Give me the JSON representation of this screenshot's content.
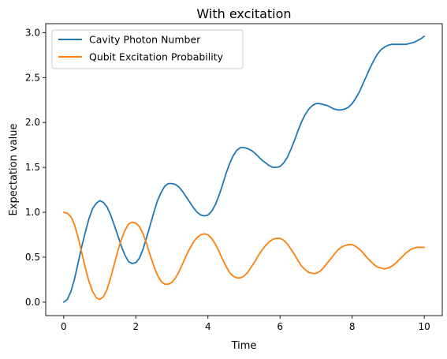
{
  "chart_data": {
    "type": "line",
    "title": "With excitation",
    "xlabel": "Time",
    "ylabel": "Expectation value",
    "xlim": [
      -0.5,
      10.5
    ],
    "ylim": [
      -0.15,
      3.1
    ],
    "xticks": [
      0,
      2,
      4,
      6,
      8,
      10
    ],
    "yticks": [
      0.0,
      0.5,
      1.0,
      1.5,
      2.0,
      2.5,
      3.0
    ],
    "grid": false,
    "legend_position": "top-left",
    "series": [
      {
        "name": "Cavity Photon Number",
        "color": "#1f77b4",
        "points": [
          [
            0.0,
            0.0
          ],
          [
            0.1,
            0.03
          ],
          [
            0.2,
            0.12
          ],
          [
            0.3,
            0.26
          ],
          [
            0.4,
            0.44
          ],
          [
            0.5,
            0.62
          ],
          [
            0.6,
            0.78
          ],
          [
            0.7,
            0.93
          ],
          [
            0.8,
            1.04
          ],
          [
            0.9,
            1.1
          ],
          [
            1.0,
            1.13
          ],
          [
            1.1,
            1.11
          ],
          [
            1.2,
            1.06
          ],
          [
            1.3,
            0.97
          ],
          [
            1.4,
            0.86
          ],
          [
            1.5,
            0.74
          ],
          [
            1.6,
            0.62
          ],
          [
            1.7,
            0.52
          ],
          [
            1.8,
            0.45
          ],
          [
            1.9,
            0.43
          ],
          [
            2.0,
            0.44
          ],
          [
            2.1,
            0.49
          ],
          [
            2.2,
            0.59
          ],
          [
            2.3,
            0.72
          ],
          [
            2.4,
            0.86
          ],
          [
            2.5,
            1.0
          ],
          [
            2.6,
            1.13
          ],
          [
            2.7,
            1.22
          ],
          [
            2.8,
            1.29
          ],
          [
            2.9,
            1.32
          ],
          [
            3.0,
            1.32
          ],
          [
            3.1,
            1.31
          ],
          [
            3.2,
            1.28
          ],
          [
            3.3,
            1.23
          ],
          [
            3.4,
            1.17
          ],
          [
            3.5,
            1.11
          ],
          [
            3.6,
            1.05
          ],
          [
            3.7,
            1.0
          ],
          [
            3.8,
            0.97
          ],
          [
            3.9,
            0.96
          ],
          [
            4.0,
            0.97
          ],
          [
            4.1,
            1.01
          ],
          [
            4.2,
            1.08
          ],
          [
            4.3,
            1.18
          ],
          [
            4.4,
            1.3
          ],
          [
            4.5,
            1.43
          ],
          [
            4.6,
            1.54
          ],
          [
            4.7,
            1.63
          ],
          [
            4.8,
            1.69
          ],
          [
            4.9,
            1.72
          ],
          [
            5.0,
            1.72
          ],
          [
            5.1,
            1.71
          ],
          [
            5.2,
            1.69
          ],
          [
            5.3,
            1.66
          ],
          [
            5.4,
            1.62
          ],
          [
            5.5,
            1.58
          ],
          [
            5.6,
            1.55
          ],
          [
            5.7,
            1.52
          ],
          [
            5.8,
            1.5
          ],
          [
            5.9,
            1.5
          ],
          [
            6.0,
            1.51
          ],
          [
            6.1,
            1.55
          ],
          [
            6.2,
            1.61
          ],
          [
            6.3,
            1.7
          ],
          [
            6.4,
            1.8
          ],
          [
            6.5,
            1.91
          ],
          [
            6.6,
            2.01
          ],
          [
            6.7,
            2.09
          ],
          [
            6.8,
            2.15
          ],
          [
            6.9,
            2.19
          ],
          [
            7.0,
            2.21
          ],
          [
            7.1,
            2.21
          ],
          [
            7.2,
            2.2
          ],
          [
            7.3,
            2.19
          ],
          [
            7.4,
            2.17
          ],
          [
            7.5,
            2.15
          ],
          [
            7.6,
            2.14
          ],
          [
            7.7,
            2.14
          ],
          [
            7.8,
            2.15
          ],
          [
            7.9,
            2.17
          ],
          [
            8.0,
            2.21
          ],
          [
            8.1,
            2.27
          ],
          [
            8.2,
            2.34
          ],
          [
            8.3,
            2.43
          ],
          [
            8.4,
            2.52
          ],
          [
            8.5,
            2.61
          ],
          [
            8.6,
            2.69
          ],
          [
            8.7,
            2.76
          ],
          [
            8.8,
            2.81
          ],
          [
            8.9,
            2.84
          ],
          [
            9.0,
            2.86
          ],
          [
            9.1,
            2.87
          ],
          [
            9.2,
            2.87
          ],
          [
            9.3,
            2.87
          ],
          [
            9.4,
            2.87
          ],
          [
            9.5,
            2.87
          ],
          [
            9.6,
            2.88
          ],
          [
            9.7,
            2.89
          ],
          [
            9.8,
            2.91
          ],
          [
            9.9,
            2.93
          ],
          [
            10.0,
            2.96
          ]
        ]
      },
      {
        "name": "Qubit Excitation Probability",
        "color": "#ff7f0e",
        "points": [
          [
            0.0,
            1.0
          ],
          [
            0.1,
            0.99
          ],
          [
            0.2,
            0.95
          ],
          [
            0.3,
            0.86
          ],
          [
            0.4,
            0.72
          ],
          [
            0.5,
            0.55
          ],
          [
            0.6,
            0.38
          ],
          [
            0.7,
            0.23
          ],
          [
            0.8,
            0.12
          ],
          [
            0.9,
            0.05
          ],
          [
            1.0,
            0.03
          ],
          [
            1.1,
            0.06
          ],
          [
            1.2,
            0.14
          ],
          [
            1.3,
            0.27
          ],
          [
            1.4,
            0.42
          ],
          [
            1.5,
            0.57
          ],
          [
            1.6,
            0.7
          ],
          [
            1.7,
            0.8
          ],
          [
            1.8,
            0.87
          ],
          [
            1.9,
            0.89
          ],
          [
            2.0,
            0.88
          ],
          [
            2.1,
            0.84
          ],
          [
            2.2,
            0.76
          ],
          [
            2.3,
            0.65
          ],
          [
            2.4,
            0.52
          ],
          [
            2.5,
            0.4
          ],
          [
            2.6,
            0.3
          ],
          [
            2.7,
            0.23
          ],
          [
            2.8,
            0.2
          ],
          [
            2.9,
            0.2
          ],
          [
            3.0,
            0.22
          ],
          [
            3.1,
            0.27
          ],
          [
            3.2,
            0.34
          ],
          [
            3.3,
            0.43
          ],
          [
            3.4,
            0.52
          ],
          [
            3.5,
            0.6
          ],
          [
            3.6,
            0.67
          ],
          [
            3.7,
            0.72
          ],
          [
            3.8,
            0.75
          ],
          [
            3.9,
            0.76
          ],
          [
            4.0,
            0.75
          ],
          [
            4.1,
            0.71
          ],
          [
            4.2,
            0.65
          ],
          [
            4.3,
            0.57
          ],
          [
            4.4,
            0.48
          ],
          [
            4.5,
            0.4
          ],
          [
            4.6,
            0.33
          ],
          [
            4.7,
            0.29
          ],
          [
            4.8,
            0.27
          ],
          [
            4.9,
            0.27
          ],
          [
            5.0,
            0.29
          ],
          [
            5.1,
            0.33
          ],
          [
            5.2,
            0.39
          ],
          [
            5.3,
            0.45
          ],
          [
            5.4,
            0.52
          ],
          [
            5.5,
            0.58
          ],
          [
            5.6,
            0.63
          ],
          [
            5.7,
            0.67
          ],
          [
            5.8,
            0.7
          ],
          [
            5.9,
            0.71
          ],
          [
            6.0,
            0.71
          ],
          [
            6.1,
            0.69
          ],
          [
            6.2,
            0.65
          ],
          [
            6.3,
            0.59
          ],
          [
            6.4,
            0.53
          ],
          [
            6.5,
            0.46
          ],
          [
            6.6,
            0.4
          ],
          [
            6.7,
            0.36
          ],
          [
            6.8,
            0.33
          ],
          [
            6.9,
            0.32
          ],
          [
            7.0,
            0.32
          ],
          [
            7.1,
            0.34
          ],
          [
            7.2,
            0.38
          ],
          [
            7.3,
            0.43
          ],
          [
            7.4,
            0.48
          ],
          [
            7.5,
            0.53
          ],
          [
            7.6,
            0.58
          ],
          [
            7.7,
            0.61
          ],
          [
            7.8,
            0.63
          ],
          [
            7.9,
            0.64
          ],
          [
            8.0,
            0.64
          ],
          [
            8.1,
            0.62
          ],
          [
            8.2,
            0.59
          ],
          [
            8.3,
            0.55
          ],
          [
            8.4,
            0.5
          ],
          [
            8.5,
            0.46
          ],
          [
            8.6,
            0.42
          ],
          [
            8.7,
            0.39
          ],
          [
            8.8,
            0.38
          ],
          [
            8.9,
            0.37
          ],
          [
            9.0,
            0.38
          ],
          [
            9.1,
            0.4
          ],
          [
            9.2,
            0.43
          ],
          [
            9.3,
            0.47
          ],
          [
            9.4,
            0.51
          ],
          [
            9.5,
            0.55
          ],
          [
            9.6,
            0.58
          ],
          [
            9.7,
            0.6
          ],
          [
            9.8,
            0.61
          ],
          [
            9.9,
            0.61
          ],
          [
            10.0,
            0.61
          ]
        ]
      }
    ]
  }
}
